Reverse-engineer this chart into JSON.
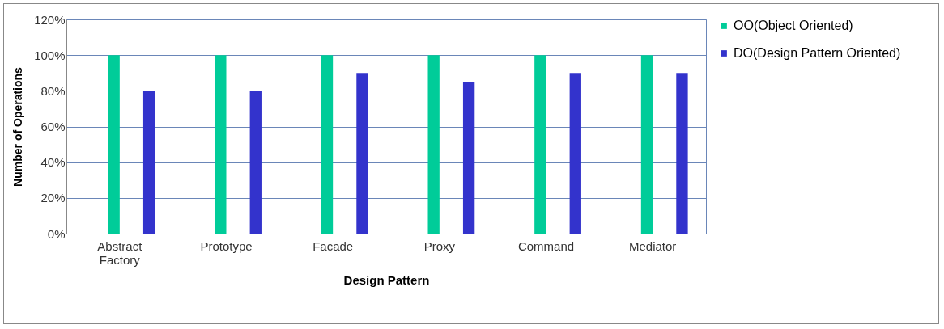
{
  "chart_data": {
    "type": "bar",
    "xlabel": "Design Pattern",
    "ylabel": "Number of Operations",
    "categories": [
      "Abstract Factory",
      "Prototype",
      "Facade",
      "Proxy",
      "Command",
      "Mediator"
    ],
    "series": [
      {
        "name": "OO(Object Oriented)",
        "color": "#00cc99",
        "values": [
          100,
          100,
          100,
          100,
          100,
          100
        ]
      },
      {
        "name": "DO(Design Pattern Oriented)",
        "color": "#3333cc",
        "values": [
          80,
          80,
          90,
          85,
          90,
          90
        ]
      }
    ],
    "ylim": [
      0,
      120
    ],
    "yticks": [
      {
        "value": 0,
        "label": "0%"
      },
      {
        "value": 20,
        "label": "20%"
      },
      {
        "value": 40,
        "label": "40%"
      },
      {
        "value": 60,
        "label": "60%"
      },
      {
        "value": 80,
        "label": "80%"
      },
      {
        "value": 100,
        "label": "100%"
      },
      {
        "value": 120,
        "label": "120%"
      }
    ],
    "grid": "y",
    "legend": "right"
  }
}
